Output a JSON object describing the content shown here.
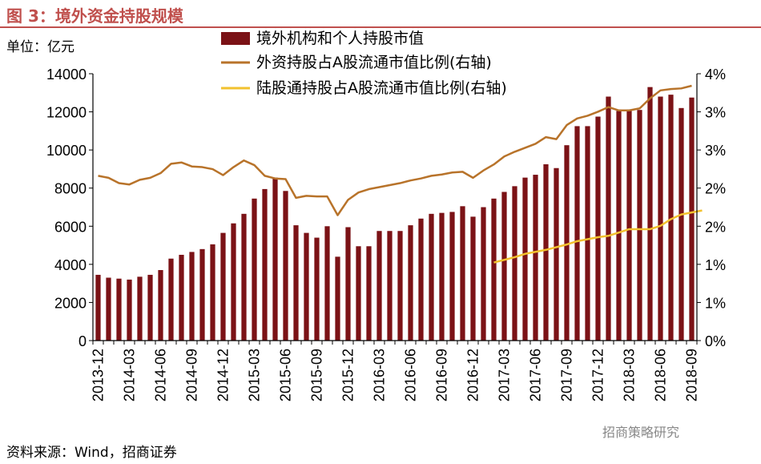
{
  "figure_title": "图 3：境外资金持股规模",
  "unit_label": "单位：亿元",
  "source": "资料来源：Wind，招商证券",
  "watermark": "招商策略研究",
  "colors": {
    "bar": "#7b1216",
    "foreign_line": "#b8732a",
    "connect_line": "#f2c12e",
    "title": "#c0504d"
  },
  "chart_data": {
    "type": "bar",
    "left_axis": {
      "min": 0,
      "max": 14000,
      "ticks": [
        0,
        2000,
        4000,
        6000,
        8000,
        10000,
        12000,
        14000
      ]
    },
    "right_axis": {
      "ticks": [
        "0%",
        "1%",
        "1%",
        "2%",
        "2%",
        "3%",
        "3%",
        "4%"
      ],
      "min": 0,
      "max": 0.04
    },
    "x_tick_labels": [
      "2013-12",
      "2014-03",
      "2014-06",
      "2014-09",
      "2014-12",
      "2015-03",
      "2015-06",
      "2015-09",
      "2015-12",
      "2016-03",
      "2016-06",
      "2016-09",
      "2016-12",
      "2017-03",
      "2017-06",
      "2017-09",
      "2017-12",
      "2018-03",
      "2018-06",
      "2018-09"
    ],
    "series": [
      {
        "name": "境外机构和个人持股市值",
        "kind": "bar",
        "values": [
          3450,
          3300,
          3250,
          3200,
          3350,
          3450,
          3700,
          4300,
          4500,
          4650,
          4800,
          5050,
          5650,
          6150,
          6650,
          7450,
          7950,
          8550,
          7850,
          6050,
          5650,
          5400,
          6000,
          4400,
          5950,
          4950,
          4950,
          5750,
          5750,
          5750,
          6050,
          6400,
          6650,
          6700,
          6750,
          7050,
          6500,
          7000,
          7450,
          7800,
          8100,
          8550,
          8700,
          9250,
          9050,
          10250,
          11250,
          11250,
          11750,
          12800,
          12050,
          12050,
          12100,
          13300,
          12800,
          12900,
          12200,
          12750
        ]
      },
      {
        "name": "外资持股占A股流通市值比例(右轴)",
        "kind": "line",
        "values": [
          0.0247,
          0.0244,
          0.0236,
          0.0234,
          0.0241,
          0.0244,
          0.0251,
          0.0265,
          0.0267,
          0.0261,
          0.026,
          0.0257,
          0.0248,
          0.026,
          0.027,
          0.0263,
          0.0247,
          0.0243,
          0.0242,
          0.0214,
          0.0217,
          0.0216,
          0.0216,
          0.0188,
          0.0211,
          0.0222,
          0.0227,
          0.023,
          0.0233,
          0.0236,
          0.024,
          0.0243,
          0.0247,
          0.0249,
          0.0252,
          0.0253,
          0.0244,
          0.0255,
          0.0264,
          0.0276,
          0.0283,
          0.0289,
          0.0295,
          0.0305,
          0.0302,
          0.0323,
          0.0333,
          0.0337,
          0.0343,
          0.035,
          0.0345,
          0.0345,
          0.0348,
          0.0363,
          0.0375,
          0.0377,
          0.0378,
          0.0382
        ]
      },
      {
        "name": "陆股通持股占A股流通市值比例(右轴)",
        "kind": "line",
        "start_index": 38,
        "values": [
          0.0117,
          0.0121,
          0.0125,
          0.013,
          0.0133,
          0.0136,
          0.014,
          0.0144,
          0.0149,
          0.0152,
          0.0155,
          0.0157,
          0.0162,
          0.0167,
          0.0167,
          0.0167,
          0.0172,
          0.0182,
          0.0189,
          0.0192,
          0.0195
        ]
      }
    ]
  }
}
